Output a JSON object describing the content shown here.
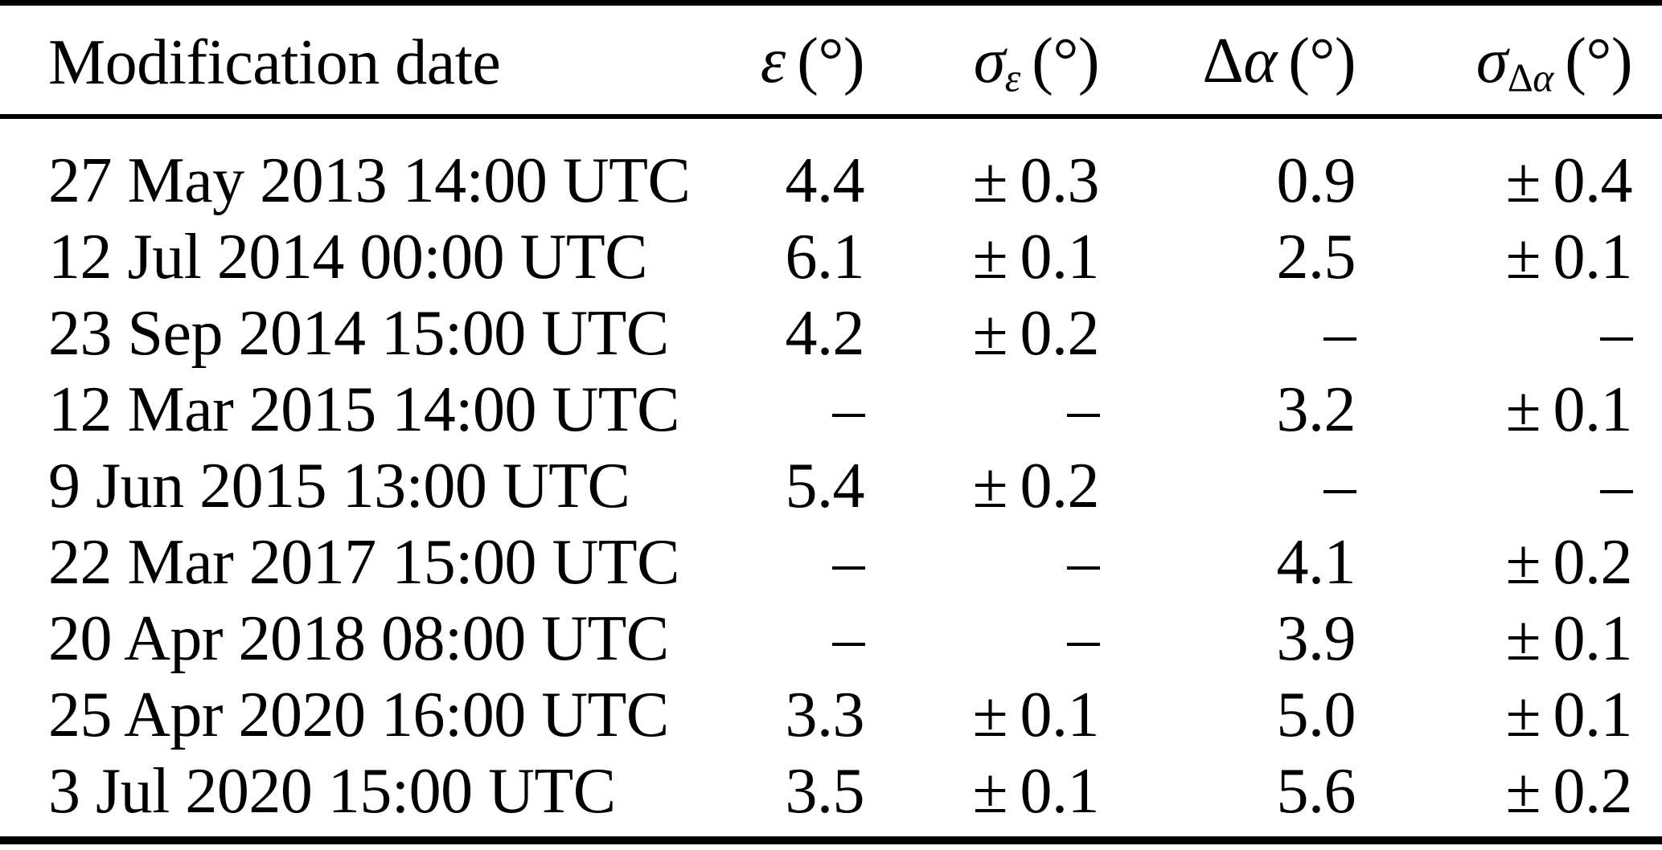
{
  "table": {
    "title": "Modification history table",
    "columns": [
      {
        "label": "Modification date"
      },
      {
        "upright": "",
        "italic": "ε",
        "sub_upright": "",
        "sub_italic": "",
        "unit": "(°)"
      },
      {
        "upright": "",
        "italic": "σ",
        "sub_upright": "",
        "sub_italic": "ε",
        "unit": "(°)"
      },
      {
        "upright": "Δ",
        "italic": "α",
        "sub_upright": "",
        "sub_italic": "",
        "unit": "(°)"
      },
      {
        "upright": "",
        "italic": "σ",
        "sub_upright": "Δ",
        "sub_italic": "α",
        "unit": "(°)"
      }
    ],
    "rows": [
      [
        "27 May 2013 14:00 UTC",
        "4.4",
        "± 0.3",
        "0.9",
        "± 0.4"
      ],
      [
        "12 Jul 2014 00:00 UTC",
        "6.1",
        "± 0.1",
        "2.5",
        "± 0.1"
      ],
      [
        "23 Sep 2014 15:00 UTC",
        "4.2",
        "± 0.2",
        "–",
        "–"
      ],
      [
        "12 Mar 2015 14:00 UTC",
        "–",
        "–",
        "3.2",
        "± 0.1"
      ],
      [
        "9 Jun 2015 13:00 UTC",
        "5.4",
        "± 0.2",
        "–",
        "–"
      ],
      [
        "22 Mar 2017 15:00 UTC",
        "–",
        "–",
        "4.1",
        "± 0.2"
      ],
      [
        "20 Apr 2018 08:00 UTC",
        "–",
        "–",
        "3.9",
        "± 0.1"
      ],
      [
        "25 Apr 2020 16:00 UTC",
        "3.3",
        "± 0.1",
        "5.0",
        "± 0.1"
      ],
      [
        "3 Jul 2020 15:00 UTC",
        "3.5",
        "± 0.1",
        "5.6",
        "± 0.2"
      ]
    ],
    "missing_value_marker": "–",
    "colors": {
      "text": "#000000",
      "background": "#ffffff",
      "rule": "#000000"
    }
  }
}
